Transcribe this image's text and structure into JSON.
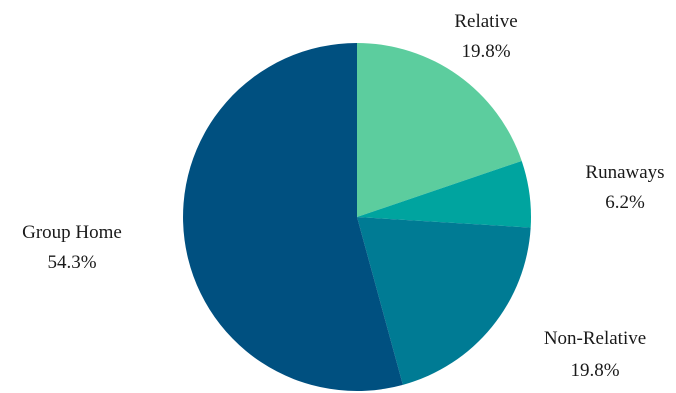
{
  "chart_data": {
    "type": "pie",
    "title": "",
    "start_angle_deg": 0,
    "direction": "clockwise",
    "slices": [
      {
        "label": "Relative",
        "value": 19.8,
        "value_label": "19.8%",
        "color": "#5ccd9e"
      },
      {
        "label": "Runaways",
        "value": 6.2,
        "value_label": "6.2%",
        "color": "#00a49f"
      },
      {
        "label": "Non-Relative",
        "value": 19.8,
        "value_label": "19.8%",
        "color": "#007b94"
      },
      {
        "label": "Group Home",
        "value": 54.3,
        "value_label": "54.3%",
        "color": "#005080"
      }
    ]
  }
}
